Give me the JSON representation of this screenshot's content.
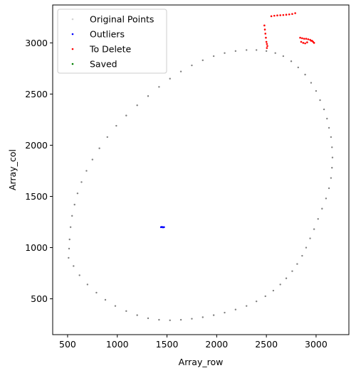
{
  "chart_data": {
    "type": "scatter",
    "xlabel": "Array_row",
    "ylabel": "Array_col",
    "xlim": [
      350,
      3330
    ],
    "ylim": [
      150,
      3370
    ],
    "x_ticks": [
      500,
      1000,
      1500,
      2000,
      2500,
      3000
    ],
    "y_ticks": [
      500,
      1000,
      1500,
      2000,
      2500,
      3000
    ],
    "grid": false,
    "legend_position": "top-left",
    "legend": [
      {
        "label": "Original Points",
        "color": "#d3d3d3"
      },
      {
        "label": "Outliers",
        "color": "#0000ff"
      },
      {
        "label": "To Delete",
        "color": "#ff0000"
      },
      {
        "label": "Saved",
        "color": "#008000"
      }
    ],
    "series": [
      {
        "name": "Original Points",
        "color": "#808080",
        "x": [
          510,
          560,
          620,
          700,
          790,
          880,
          980,
          1090,
          1200,
          1310,
          1420,
          1530,
          1640,
          1750,
          1860,
          1970,
          2080,
          2190,
          2300,
          2400,
          2490,
          2570,
          2640,
          2700,
          2760,
          2810,
          2860,
          2900,
          2940,
          2980,
          3020,
          3060,
          3100,
          3130,
          3150,
          3160,
          3165,
          3160,
          3150,
          3130,
          3110,
          3080,
          3040,
          3000,
          2950,
          2890,
          2820,
          2750,
          2670,
          2590,
          2500,
          2400,
          2300,
          2190,
          2080,
          1970,
          1860,
          1750,
          1640,
          1530,
          1420,
          1310,
          1200,
          1090,
          990,
          900,
          820,
          750,
          690,
          640,
          600,
          570,
          545,
          530,
          520,
          515
        ],
        "y": [
          900,
          820,
          730,
          640,
          560,
          490,
          430,
          380,
          340,
          310,
          295,
          290,
          295,
          305,
          320,
          340,
          365,
          395,
          430,
          475,
          525,
          580,
          640,
          700,
          770,
          840,
          920,
          1000,
          1090,
          1180,
          1280,
          1380,
          1480,
          1580,
          1680,
          1780,
          1880,
          1980,
          2080,
          2170,
          2260,
          2350,
          2440,
          2530,
          2610,
          2690,
          2760,
          2820,
          2870,
          2900,
          2920,
          2930,
          2930,
          2920,
          2900,
          2870,
          2830,
          2780,
          2720,
          2650,
          2570,
          2480,
          2390,
          2290,
          2190,
          2080,
          1970,
          1860,
          1750,
          1640,
          1530,
          1420,
          1310,
          1200,
          1080,
          990
        ]
      },
      {
        "name": "Outliers",
        "color": "#0000ff",
        "x": [
          1440,
          1450,
          1460,
          1470
        ],
        "y": [
          1200,
          1202,
          1198,
          1200
        ]
      },
      {
        "name": "To Delete",
        "color": "#ff0000",
        "x": [
          2550,
          2580,
          2610,
          2640,
          2670,
          2700,
          2730,
          2760,
          2790,
          2480,
          2485,
          2490,
          2495,
          2500,
          2505,
          2510,
          2505,
          2840,
          2860,
          2880,
          2900,
          2920,
          2940,
          2960,
          2980,
          2850,
          2870,
          2890,
          2910,
          2950,
          2970
        ],
        "y": [
          3260,
          3265,
          3268,
          3270,
          3272,
          3275,
          3278,
          3282,
          3290,
          3170,
          3130,
          3090,
          3050,
          3010,
          2990,
          2970,
          2950,
          3050,
          3045,
          3040,
          3040,
          3035,
          3030,
          3020,
          3000,
          3010,
          3000,
          2995,
          3005,
          3020,
          3010
        ]
      },
      {
        "name": "Saved",
        "color": "#008000",
        "x": [],
        "y": []
      }
    ]
  }
}
